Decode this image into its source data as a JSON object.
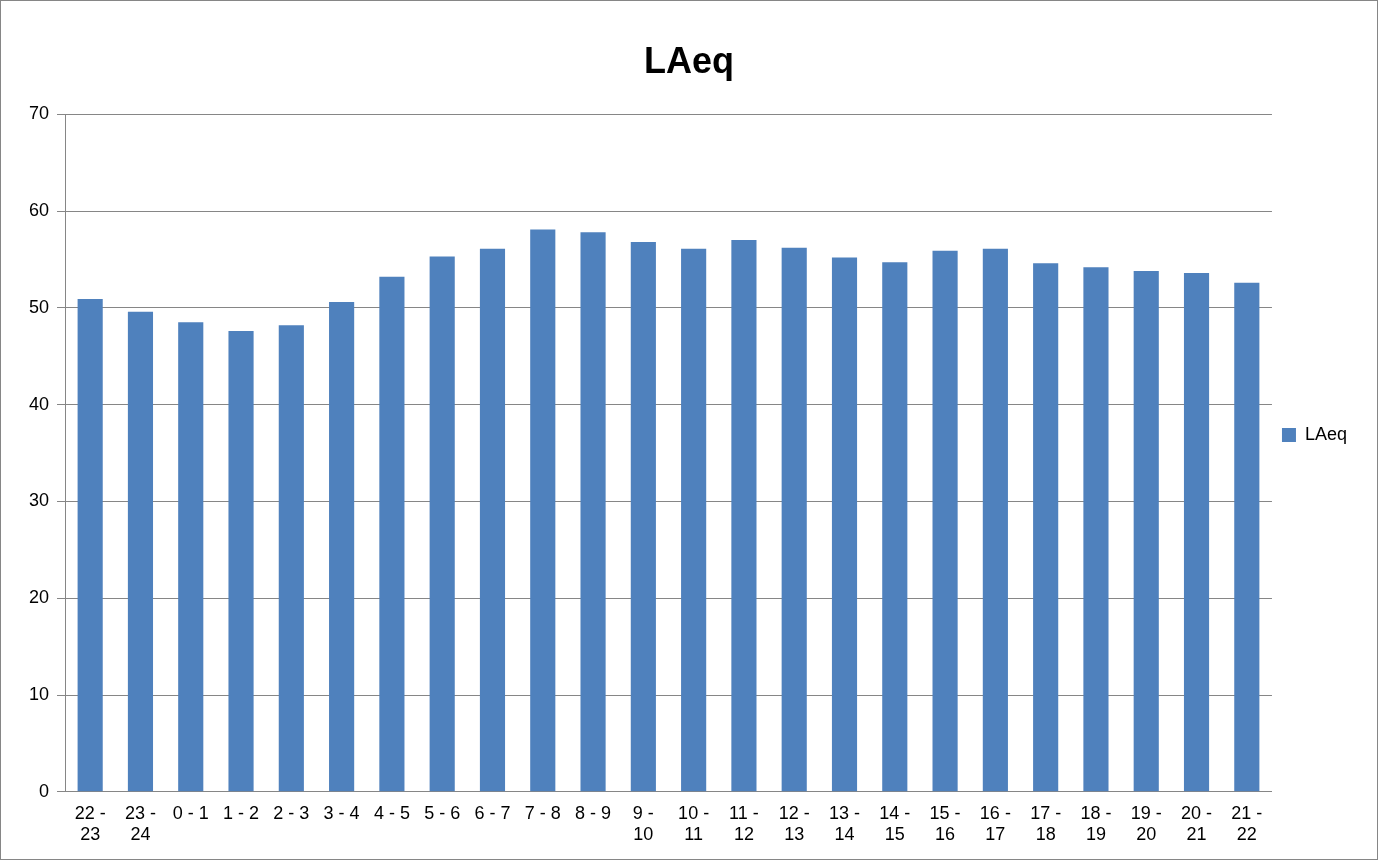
{
  "chart_data": {
    "type": "bar",
    "title": "LAeq",
    "categories": [
      "22 - 23",
      "23 - 24",
      "0 - 1",
      "1 - 2",
      "2 - 3",
      "3 - 4",
      "4 - 5",
      "5 - 6",
      "6 - 7",
      "7 - 8",
      "8 - 9",
      "9 - 10",
      "10 - 11",
      "11 - 12",
      "12 - 13",
      "13 - 14",
      "14 - 15",
      "15 - 16",
      "16 - 17",
      "17 - 18",
      "18 - 19",
      "19 - 20",
      "20 - 21",
      "21 - 22"
    ],
    "series": [
      {
        "name": "LAeq",
        "color": "#4f81bd",
        "values": [
          50.9,
          49.6,
          48.5,
          47.6,
          48.2,
          50.6,
          53.2,
          55.3,
          56.1,
          58.1,
          57.8,
          56.8,
          56.1,
          57.0,
          56.2,
          55.2,
          54.7,
          55.9,
          56.1,
          54.6,
          54.2,
          53.8,
          53.6,
          52.6
        ]
      }
    ],
    "ylim": [
      0,
      70
    ],
    "yticks": [
      0,
      10,
      20,
      30,
      40,
      50,
      60,
      70
    ],
    "grid": "y",
    "legend": "right"
  }
}
